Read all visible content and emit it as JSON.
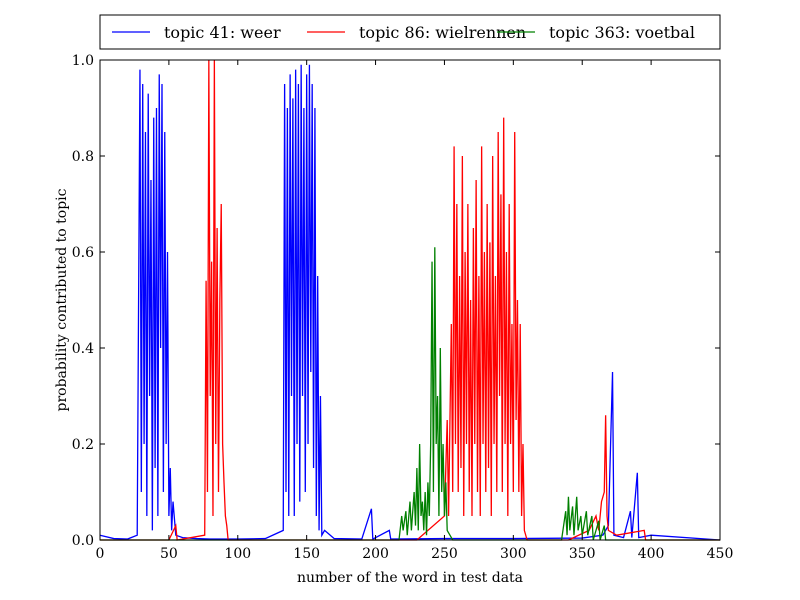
{
  "chart_data": {
    "type": "line",
    "title": "",
    "xlabel": "number of the word in test data",
    "ylabel": "probability contributed to topic",
    "xlim": [
      0,
      450
    ],
    "ylim": [
      0.0,
      1.0
    ],
    "xticks": [
      0,
      50,
      100,
      150,
      200,
      250,
      300,
      350,
      400,
      450
    ],
    "yticks": [
      0.0,
      0.2,
      0.4,
      0.6,
      0.8,
      1.0
    ],
    "xtick_labels": [
      "0",
      "50",
      "100",
      "150",
      "200",
      "250",
      "300",
      "350",
      "400",
      "450"
    ],
    "ytick_labels": [
      "0.0",
      "0.2",
      "0.4",
      "0.6",
      "0.8",
      "1.0"
    ],
    "grid": false,
    "legend_position": "top",
    "series": [
      {
        "name": "topic 41: weer",
        "color": "#0000ff",
        "points": [
          [
            0,
            0.01
          ],
          [
            10,
            0.003
          ],
          [
            20,
            0.002
          ],
          [
            27,
            0.01
          ],
          [
            29,
            0.98
          ],
          [
            30,
            0.1
          ],
          [
            31,
            0.95
          ],
          [
            32,
            0.2
          ],
          [
            33,
            0.85
          ],
          [
            34,
            0.05
          ],
          [
            35,
            0.93
          ],
          [
            36,
            0.3
          ],
          [
            37,
            0.75
          ],
          [
            38,
            0.02
          ],
          [
            39,
            0.88
          ],
          [
            40,
            0.15
          ],
          [
            41,
            0.9
          ],
          [
            42,
            0.05
          ],
          [
            43,
            0.97
          ],
          [
            44,
            0.4
          ],
          [
            45,
            0.95
          ],
          [
            46,
            0.1
          ],
          [
            47,
            0.85
          ],
          [
            48,
            0.2
          ],
          [
            49,
            0.6
          ],
          [
            50,
            0.05
          ],
          [
            51,
            0.15
          ],
          [
            52,
            0.02
          ],
          [
            53,
            0.08
          ],
          [
            55,
            0.01
          ],
          [
            60,
            0.005
          ],
          [
            70,
            0.003
          ],
          [
            80,
            0.002
          ],
          [
            100,
            0.002
          ],
          [
            120,
            0.003
          ],
          [
            133,
            0.02
          ],
          [
            134,
            0.95
          ],
          [
            135,
            0.1
          ],
          [
            136,
            0.9
          ],
          [
            137,
            0.05
          ],
          [
            138,
            0.97
          ],
          [
            139,
            0.3
          ],
          [
            140,
            0.92
          ],
          [
            141,
            0.05
          ],
          [
            142,
            0.98
          ],
          [
            143,
            0.2
          ],
          [
            144,
            0.95
          ],
          [
            145,
            0.08
          ],
          [
            146,
            0.99
          ],
          [
            147,
            0.3
          ],
          [
            148,
            0.9
          ],
          [
            149,
            0.1
          ],
          [
            150,
            0.97
          ],
          [
            151,
            0.2
          ],
          [
            152,
            0.99
          ],
          [
            153,
            0.35
          ],
          [
            154,
            0.95
          ],
          [
            155,
            0.15
          ],
          [
            156,
            0.9
          ],
          [
            157,
            0.05
          ],
          [
            158,
            0.55
          ],
          [
            159,
            0.02
          ],
          [
            160,
            0.3
          ],
          [
            161,
            0.01
          ],
          [
            163,
            0.02
          ],
          [
            170,
            0.003
          ],
          [
            190,
            0.002
          ],
          [
            197,
            0.065
          ],
          [
            198,
            0.002
          ],
          [
            210,
            0.02
          ],
          [
            211,
            0.002
          ],
          [
            250,
            0.003
          ],
          [
            300,
            0.003
          ],
          [
            350,
            0.004
          ],
          [
            365,
            0.01
          ],
          [
            369,
            0.03
          ],
          [
            372,
            0.35
          ],
          [
            373,
            0.01
          ],
          [
            380,
            0.005
          ],
          [
            385,
            0.06
          ],
          [
            386,
            0.005
          ],
          [
            390,
            0.14
          ],
          [
            391,
            0.005
          ],
          [
            400,
            0.01
          ],
          [
            450,
            0.0
          ]
        ]
      },
      {
        "name": "topic 86: wielrennen",
        "color": "#ff0000",
        "points": [
          [
            0,
            0.0
          ],
          [
            50,
            0.0
          ],
          [
            55,
            0.03
          ],
          [
            56,
            0.0
          ],
          [
            76,
            0.01
          ],
          [
            77,
            0.54
          ],
          [
            78,
            0.1
          ],
          [
            79,
            1.0
          ],
          [
            80,
            0.3
          ],
          [
            81,
            0.58
          ],
          [
            82,
            0.05
          ],
          [
            83,
            1.0
          ],
          [
            84,
            0.2
          ],
          [
            85,
            0.65
          ],
          [
            86,
            0.1
          ],
          [
            87,
            0.5
          ],
          [
            88,
            0.7
          ],
          [
            89,
            0.2
          ],
          [
            90,
            0.12
          ],
          [
            91,
            0.05
          ],
          [
            92,
            0.03
          ],
          [
            93,
            0.0
          ],
          [
            100,
            0.0
          ],
          [
            200,
            0.0
          ],
          [
            230,
            0.0
          ],
          [
            250,
            0.05
          ],
          [
            252,
            0.25
          ],
          [
            253,
            0.05
          ],
          [
            255,
            0.45
          ],
          [
            256,
            0.1
          ],
          [
            257,
            0.82
          ],
          [
            258,
            0.2
          ],
          [
            259,
            0.7
          ],
          [
            260,
            0.1
          ],
          [
            261,
            0.55
          ],
          [
            262,
            0.15
          ],
          [
            263,
            0.8
          ],
          [
            264,
            0.05
          ],
          [
            265,
            0.6
          ],
          [
            266,
            0.2
          ],
          [
            267,
            0.7
          ],
          [
            268,
            0.1
          ],
          [
            269,
            0.5
          ],
          [
            270,
            0.05
          ],
          [
            271,
            0.65
          ],
          [
            272,
            0.2
          ],
          [
            273,
            0.75
          ],
          [
            274,
            0.1
          ],
          [
            275,
            0.55
          ],
          [
            276,
            0.05
          ],
          [
            277,
            0.82
          ],
          [
            278,
            0.2
          ],
          [
            279,
            0.6
          ],
          [
            280,
            0.1
          ],
          [
            281,
            0.7
          ],
          [
            282,
            0.15
          ],
          [
            283,
            0.62
          ],
          [
            284,
            0.05
          ],
          [
            285,
            0.8
          ],
          [
            286,
            0.2
          ],
          [
            287,
            0.55
          ],
          [
            288,
            0.1
          ],
          [
            289,
            0.85
          ],
          [
            290,
            0.3
          ],
          [
            291,
            0.72
          ],
          [
            292,
            0.1
          ],
          [
            293,
            0.88
          ],
          [
            294,
            0.2
          ],
          [
            295,
            0.6
          ],
          [
            296,
            0.05
          ],
          [
            297,
            0.7
          ],
          [
            298,
            0.2
          ],
          [
            299,
            0.45
          ],
          [
            300,
            0.1
          ],
          [
            301,
            0.85
          ],
          [
            302,
            0.25
          ],
          [
            303,
            0.5
          ],
          [
            304,
            0.1
          ],
          [
            305,
            0.45
          ],
          [
            306,
            0.05
          ],
          [
            307,
            0.2
          ],
          [
            308,
            0.02
          ],
          [
            310,
            0.0
          ],
          [
            340,
            0.0
          ],
          [
            355,
            0.02
          ],
          [
            360,
            0.05
          ],
          [
            362,
            0.02
          ],
          [
            364,
            0.08
          ],
          [
            366,
            0.1
          ],
          [
            367,
            0.26
          ],
          [
            368,
            0.05
          ],
          [
            369,
            0.02
          ],
          [
            375,
            0.01
          ],
          [
            395,
            0.02
          ],
          [
            396,
            0.0
          ],
          [
            450,
            0.0
          ]
        ]
      },
      {
        "name": "topic 363: voetbal",
        "color": "#008000",
        "points": [
          [
            0,
            0.0
          ],
          [
            100,
            0.0
          ],
          [
            200,
            0.0
          ],
          [
            217,
            0.0
          ],
          [
            219,
            0.05
          ],
          [
            220,
            0.02
          ],
          [
            222,
            0.06
          ],
          [
            223,
            0.01
          ],
          [
            225,
            0.08
          ],
          [
            226,
            0.02
          ],
          [
            228,
            0.1
          ],
          [
            229,
            0.03
          ],
          [
            230,
            0.15
          ],
          [
            231,
            0.02
          ],
          [
            232,
            0.2
          ],
          [
            233,
            0.05
          ],
          [
            234,
            0.08
          ],
          [
            235,
            0.02
          ],
          [
            236,
            0.1
          ],
          [
            237,
            0.01
          ],
          [
            238,
            0.12
          ],
          [
            239,
            0.05
          ],
          [
            240,
            0.2
          ],
          [
            241,
            0.58
          ],
          [
            242,
            0.1
          ],
          [
            243,
            0.61
          ],
          [
            244,
            0.2
          ],
          [
            245,
            0.3
          ],
          [
            246,
            0.05
          ],
          [
            247,
            0.4
          ],
          [
            248,
            0.1
          ],
          [
            249,
            0.2
          ],
          [
            250,
            0.05
          ],
          [
            251,
            0.12
          ],
          [
            252,
            0.02
          ],
          [
            254,
            0.01
          ],
          [
            256,
            0.0
          ],
          [
            300,
            0.0
          ],
          [
            335,
            0.0
          ],
          [
            338,
            0.06
          ],
          [
            339,
            0.01
          ],
          [
            340,
            0.09
          ],
          [
            341,
            0.02
          ],
          [
            343,
            0.07
          ],
          [
            344,
            0.01
          ],
          [
            346,
            0.09
          ],
          [
            347,
            0.02
          ],
          [
            349,
            0.05
          ],
          [
            350,
            0.01
          ],
          [
            353,
            0.06
          ],
          [
            354,
            0.01
          ],
          [
            357,
            0.05
          ],
          [
            358,
            0.0
          ],
          [
            362,
            0.04
          ],
          [
            363,
            0.0
          ],
          [
            366,
            0.03
          ],
          [
            367,
            0.0
          ],
          [
            450,
            0.0
          ]
        ]
      }
    ]
  }
}
